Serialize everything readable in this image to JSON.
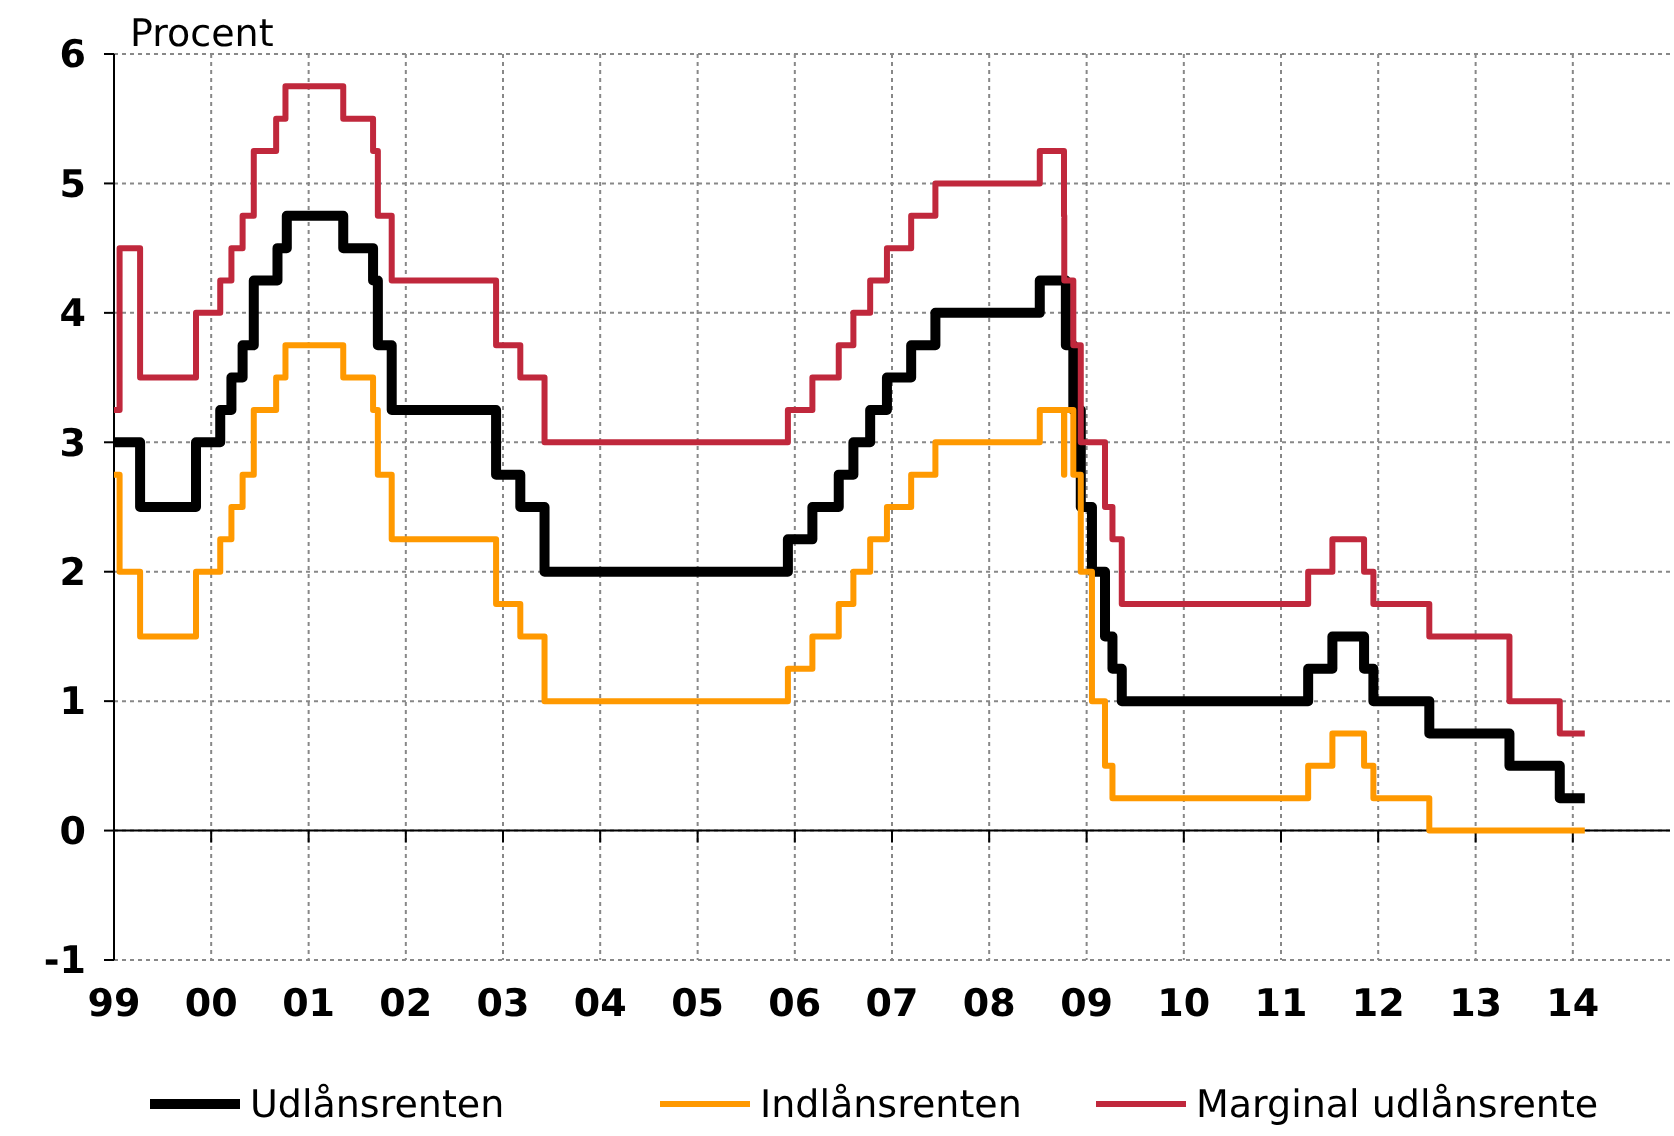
{
  "chart_data": {
    "type": "step",
    "ylabel": "Procent",
    "xlim": [
      "1999",
      "2015"
    ],
    "xticks": [
      {
        "value": "1999",
        "label": "99"
      },
      {
        "value": "2000",
        "label": "00"
      },
      {
        "value": "2001",
        "label": "01"
      },
      {
        "value": "2002",
        "label": "02"
      },
      {
        "value": "2003",
        "label": "03"
      },
      {
        "value": "2004",
        "label": "04"
      },
      {
        "value": "2005",
        "label": "05"
      },
      {
        "value": "2006",
        "label": "06"
      },
      {
        "value": "2007",
        "label": "07"
      },
      {
        "value": "2008",
        "label": "08"
      },
      {
        "value": "2009",
        "label": "09"
      },
      {
        "value": "2010",
        "label": "10"
      },
      {
        "value": "2011",
        "label": "11"
      },
      {
        "value": "2012",
        "label": "12"
      },
      {
        "value": "2013",
        "label": "13"
      },
      {
        "value": "2014",
        "label": "14"
      }
    ],
    "ylim": [
      -1,
      6
    ],
    "yticks": [
      -1,
      0,
      1,
      2,
      3,
      4,
      5,
      6
    ],
    "grid": true,
    "legend": "bottom",
    "line_style": "solid",
    "series": [
      {
        "name": "Udlånsrenten",
        "color": "#000000",
        "x": [
          "1999-01-01",
          "1999-04-09",
          "1999-11-05",
          "2000-02-04",
          "2000-03-17",
          "2000-04-28",
          "2000-06-09",
          "2000-09-06",
          "2000-10-11",
          "2001-05-11",
          "2001-08-31",
          "2001-09-18",
          "2001-11-09",
          "2002-12-06",
          "2003-03-07",
          "2003-06-06",
          "2005-12-06",
          "2006-03-08",
          "2006-06-15",
          "2006-08-09",
          "2006-10-11",
          "2006-12-13",
          "2007-03-14",
          "2007-06-13",
          "2008-07-09",
          "2008-10-15",
          "2008-11-12",
          "2008-12-10",
          "2009-01-21",
          "2009-03-11",
          "2009-04-08",
          "2009-05-13",
          "2011-04-13",
          "2011-07-13",
          "2011-11-09",
          "2011-12-14",
          "2012-07-11",
          "2013-05-08",
          "2013-11-13",
          "2014-02-15"
        ],
        "values": [
          3,
          2.5,
          3,
          3.25,
          3.5,
          3.75,
          4.25,
          4.5,
          4.75,
          4.5,
          4.25,
          3.75,
          3.25,
          2.75,
          2.5,
          2,
          2.25,
          2.5,
          2.75,
          3,
          3.25,
          3.5,
          3.75,
          4,
          4.25,
          3.75,
          3.25,
          2.5,
          2,
          1.5,
          1.25,
          1,
          1.25,
          1.5,
          1.25,
          1,
          0.75,
          0.5,
          0.25,
          0.25
        ]
      },
      {
        "name": "Indlånsrenten",
        "color": "#ff9900",
        "x": [
          "1999-01-01",
          "1999-01-22",
          "1999-04-09",
          "1999-11-05",
          "2000-02-04",
          "2000-03-17",
          "2000-04-28",
          "2000-06-09",
          "2000-09-01",
          "2000-10-06",
          "2001-05-11",
          "2001-08-31",
          "2001-09-18",
          "2001-11-09",
          "2002-12-06",
          "2003-03-07",
          "2003-06-06",
          "2005-12-06",
          "2006-03-08",
          "2006-06-15",
          "2006-08-09",
          "2006-10-11",
          "2006-12-13",
          "2007-03-14",
          "2007-06-13",
          "2008-07-09",
          "2008-10-08",
          "2008-10-09",
          "2008-11-12",
          "2008-12-10",
          "2009-01-21",
          "2009-03-11",
          "2009-04-08",
          "2011-04-13",
          "2011-07-13",
          "2011-11-09",
          "2011-12-14",
          "2012-07-11",
          "2014-02-15"
        ],
        "values": [
          2.75,
          2,
          1.5,
          2,
          2.25,
          2.5,
          2.75,
          3.25,
          3.5,
          3.75,
          3.5,
          3.25,
          2.75,
          2.25,
          1.75,
          1.5,
          1,
          1.25,
          1.5,
          1.75,
          2,
          2.25,
          2.5,
          2.75,
          3,
          3.25,
          2.75,
          3.25,
          2.75,
          2,
          1,
          0.5,
          0.25,
          0.5,
          0.75,
          0.5,
          0.25,
          0,
          0
        ]
      },
      {
        "name": "Marginal udlånsrente",
        "color": "#c0283c",
        "x": [
          "1999-01-01",
          "1999-01-22",
          "1999-04-09",
          "1999-11-05",
          "2000-02-04",
          "2000-03-17",
          "2000-04-28",
          "2000-06-09",
          "2000-09-01",
          "2000-10-06",
          "2001-05-11",
          "2001-08-31",
          "2001-09-18",
          "2001-11-09",
          "2002-12-06",
          "2003-03-07",
          "2003-06-06",
          "2005-12-06",
          "2006-03-08",
          "2006-06-15",
          "2006-08-09",
          "2006-10-11",
          "2006-12-13",
          "2007-03-14",
          "2007-06-13",
          "2008-07-09",
          "2008-10-08",
          "2008-10-09",
          "2008-11-12",
          "2008-12-10",
          "2009-03-11",
          "2009-04-08",
          "2009-05-13",
          "2011-04-13",
          "2011-07-13",
          "2011-11-09",
          "2011-12-14",
          "2012-07-11",
          "2013-05-08",
          "2013-11-13",
          "2014-02-15"
        ],
        "values": [
          3.25,
          4.5,
          3.5,
          4,
          4.25,
          4.5,
          4.75,
          5.25,
          5.5,
          5.75,
          5.5,
          5.25,
          4.75,
          4.25,
          3.75,
          3.5,
          3,
          3.25,
          3.5,
          3.75,
          4,
          4.25,
          4.5,
          4.75,
          5,
          5.25,
          4.75,
          4.25,
          3.75,
          3,
          2.5,
          2.25,
          1.75,
          2,
          2.25,
          2,
          1.75,
          1.5,
          1,
          0.75,
          0.75
        ]
      }
    ]
  }
}
